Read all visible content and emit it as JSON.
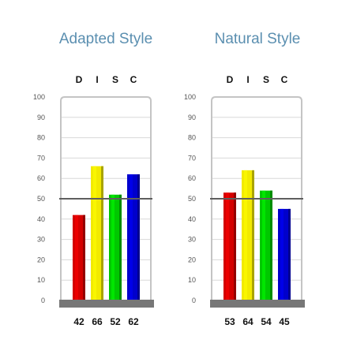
{
  "chart_data": [
    {
      "type": "bar",
      "title": "Adapted Style",
      "categories": [
        "D",
        "I",
        "S",
        "C"
      ],
      "values": [
        42,
        66,
        52,
        62
      ],
      "ylim": [
        0,
        100
      ],
      "yticks": [
        0,
        10,
        20,
        30,
        40,
        50,
        60,
        70,
        80,
        90,
        100
      ],
      "reference_line": 50,
      "bar_colors": [
        "#d40000",
        "#f2ea00",
        "#00c800",
        "#0000cc"
      ]
    },
    {
      "type": "bar",
      "title": "Natural Style",
      "categories": [
        "D",
        "I",
        "S",
        "C"
      ],
      "values": [
        53,
        64,
        54,
        45
      ],
      "ylim": [
        0,
        100
      ],
      "yticks": [
        0,
        10,
        20,
        30,
        40,
        50,
        60,
        70,
        80,
        90,
        100
      ],
      "reference_line": 50,
      "bar_colors": [
        "#d40000",
        "#f2ea00",
        "#00c800",
        "#0000cc"
      ]
    }
  ]
}
